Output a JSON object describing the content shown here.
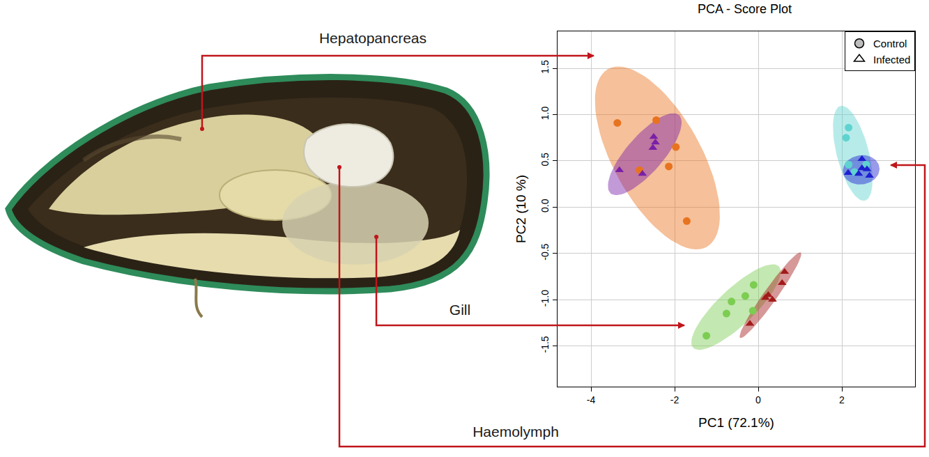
{
  "chart_data": {
    "type": "scatter",
    "title": "PCA - Score Plot",
    "x_label": "PC1 (72.1%)",
    "y_label": "PC2 (10 %)",
    "xlim": [
      -4.8,
      3.75
    ],
    "ylim": [
      -1.94,
      1.9
    ],
    "xticks": [
      -4,
      -2,
      0,
      2
    ],
    "yticks": [
      -1.5,
      {
        "value": -1,
        "label": "-1.0"
      },
      -0.5,
      {
        "value": 0,
        "label": "0.0"
      },
      0.5,
      {
        "value": 1,
        "label": "1.0"
      },
      1.5
    ],
    "grid": true,
    "legend": "top right",
    "groups": [
      {
        "name": "Control",
        "marker": "circle",
        "color": "#bdbdbd"
      },
      {
        "name": "Infected",
        "marker": "triangle-up-open",
        "color": "#000000"
      }
    ],
    "series": [
      {
        "tissue": "Hepatopancreas",
        "group": "Control",
        "marker": "circle",
        "color": "#e8731f",
        "x": [
          -3.37,
          -2.44,
          -1.97,
          -2.84,
          -2.14,
          -1.71
        ],
        "y": [
          0.91,
          0.94,
          0.65,
          0.4,
          0.44,
          -0.15
        ]
      },
      {
        "tissue": "Hepatopancreas",
        "group": "Infected",
        "marker": "triangle-up",
        "color": "#7a1fa8",
        "x": [
          -3.32,
          -2.77,
          -2.5,
          -2.46,
          -2.52
        ],
        "y": [
          0.4,
          0.36,
          0.76,
          0.7,
          0.64
        ]
      },
      {
        "tissue": "Gill",
        "group": "Control",
        "marker": "circle",
        "color": "#7ccd52",
        "x": [
          -1.24,
          -0.76,
          -0.64,
          -0.31,
          -0.11,
          -0.13
        ],
        "y": [
          -1.39,
          -1.15,
          -1.02,
          -0.96,
          -0.84,
          -1.12
        ]
      },
      {
        "tissue": "Gill",
        "group": "Infected",
        "marker": "triangle-up",
        "color": "#a31a1a",
        "x": [
          0.63,
          0.57,
          0.24,
          0.34,
          0.17,
          -0.2
        ],
        "y": [
          -0.7,
          -0.82,
          -0.95,
          -1.0,
          -0.98,
          -1.26
        ]
      },
      {
        "tissue": "Haemolymph",
        "group": "Control",
        "marker": "circle",
        "color": "#5fd3cf",
        "x": [
          2.16,
          2.1,
          2.16,
          2.3,
          2.58
        ],
        "y": [
          0.86,
          0.75,
          0.46,
          0.38,
          0.46
        ]
      },
      {
        "tissue": "Haemolymph",
        "group": "Infected",
        "marker": "triangle-up",
        "color": "#1f1fd0",
        "x": [
          2.48,
          2.48,
          2.6,
          2.4,
          2.66,
          2.15
        ],
        "y": [
          0.52,
          0.42,
          0.41,
          0.36,
          0.34,
          0.37
        ]
      }
    ]
  },
  "tissues": [
    "Hepatopancreas",
    "Gill",
    "Haemolymph"
  ]
}
